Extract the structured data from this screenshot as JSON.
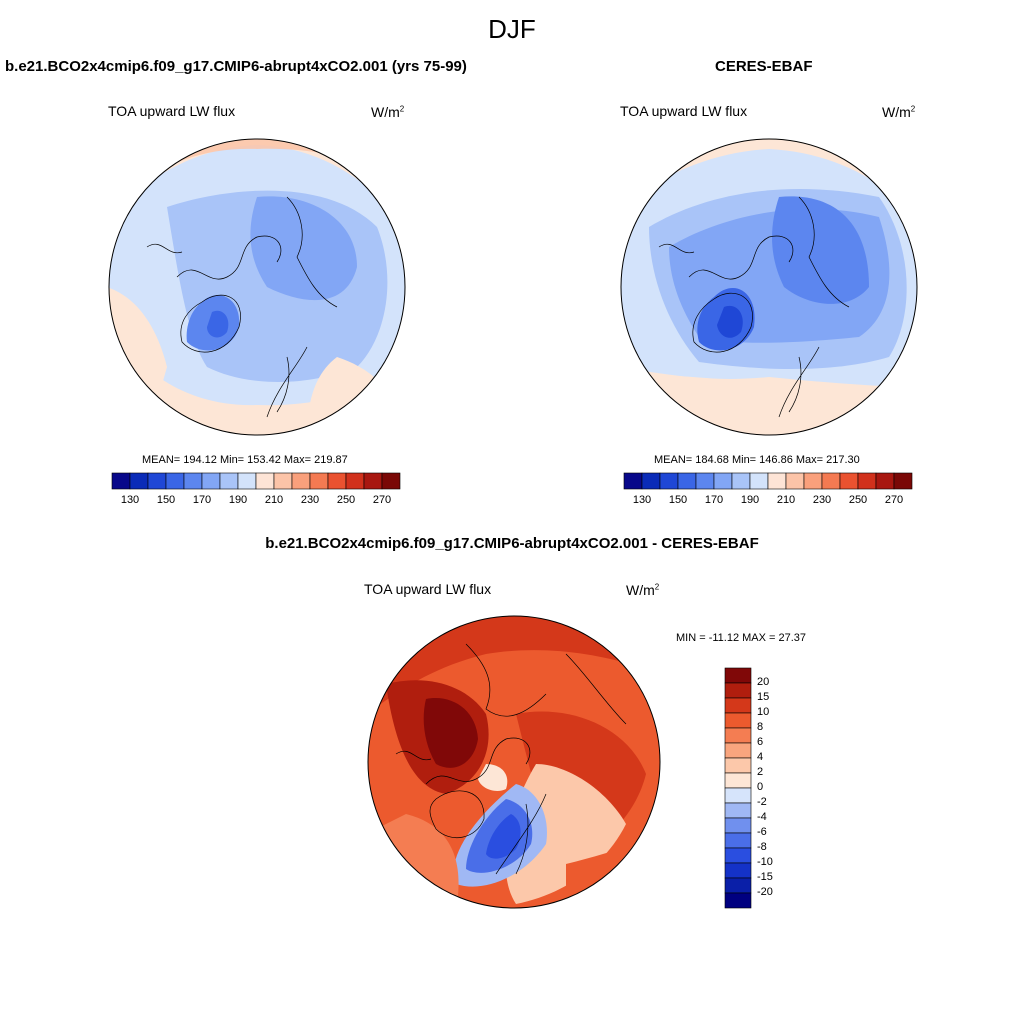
{
  "suptitle": "DJF",
  "panels": {
    "model": {
      "case_title": "b.e21.BCO2x4cmip6.f09_g17.CMIP6-abrupt4xCO2.001 (yrs 75-99)",
      "variable": "TOA upward LW flux",
      "units_base": "W/m",
      "units_exp": "2",
      "stats": "MEAN= 194.12  Min= 153.42  Max= 219.87"
    },
    "obs": {
      "case_title": "CERES-EBAF",
      "variable": "TOA upward LW flux",
      "units_base": "W/m",
      "units_exp": "2",
      "stats": "MEAN= 184.68  Min= 146.86  Max= 217.30"
    },
    "diff": {
      "case_title": "b.e21.BCO2x4cmip6.f09_g17.CMIP6-abrupt4xCO2.001 - CERES-EBAF",
      "variable": "TOA upward LW flux",
      "units_base": "W/m",
      "units_exp": "2",
      "stats": "MIN = -11.12 MAX =  27.37"
    }
  },
  "chart_data": [
    {
      "type": "heatmap",
      "title": "b.e21.BCO2x4cmip6.f09_g17.CMIP6-abrupt4xCO2.001 (yrs 75-99)",
      "variable": "TOA upward LW flux",
      "projection": "north polar stereographic",
      "stats": {
        "mean": 194.12,
        "min": 153.42,
        "max": 219.87
      },
      "colorbar": {
        "levels": [
          130,
          140,
          150,
          160,
          170,
          180,
          190,
          200,
          210,
          220,
          230,
          240,
          250,
          260,
          270
        ],
        "tick_labels": [
          "130",
          "150",
          "170",
          "190",
          "210",
          "230",
          "250",
          "270"
        ],
        "colors": [
          "#08088a",
          "#0a2bb8",
          "#1f47d6",
          "#3a66e6",
          "#5c86ef",
          "#82a6f5",
          "#a9c4f8",
          "#d3e3fb",
          "#fde4d6",
          "#fcc4a8",
          "#f9a07c",
          "#f47a52",
          "#ea5230",
          "#d1311c",
          "#a81710",
          "#7a0806"
        ]
      }
    },
    {
      "type": "heatmap",
      "title": "CERES-EBAF",
      "variable": "TOA upward LW flux",
      "projection": "north polar stereographic",
      "stats": {
        "mean": 184.68,
        "min": 146.86,
        "max": 217.3
      },
      "colorbar": {
        "levels": [
          130,
          140,
          150,
          160,
          170,
          180,
          190,
          200,
          210,
          220,
          230,
          240,
          250,
          260,
          270
        ],
        "tick_labels": [
          "130",
          "150",
          "170",
          "190",
          "210",
          "230",
          "250",
          "270"
        ],
        "colors": [
          "#08088a",
          "#0a2bb8",
          "#1f47d6",
          "#3a66e6",
          "#5c86ef",
          "#82a6f5",
          "#a9c4f8",
          "#d3e3fb",
          "#fde4d6",
          "#fcc4a8",
          "#f9a07c",
          "#f47a52",
          "#ea5230",
          "#d1311c",
          "#a81710",
          "#7a0806"
        ]
      }
    },
    {
      "type": "heatmap",
      "title": "b.e21.BCO2x4cmip6.f09_g17.CMIP6-abrupt4xCO2.001 - CERES-EBAF",
      "variable": "TOA upward LW flux",
      "projection": "north polar stereographic",
      "stats": {
        "min": -11.12,
        "max": 27.37
      },
      "colorbar": {
        "levels": [
          -20,
          -15,
          -10,
          -8,
          -6,
          -4,
          -2,
          0,
          2,
          4,
          6,
          8,
          10,
          15,
          20
        ],
        "tick_labels": [
          "20",
          "15",
          "10",
          "8",
          "6",
          "4",
          "2",
          "0",
          "-2",
          "-4",
          "-6",
          "-8",
          "-10",
          "-15",
          "-20"
        ],
        "colors": [
          "#000080",
          "#0a1fa8",
          "#1432c8",
          "#2a4ee0",
          "#4a6ee8",
          "#7090ee",
          "#a0b8f4",
          "#d6e4fb",
          "#fde6d6",
          "#fcc8aa",
          "#f9a57e",
          "#f47d52",
          "#ec5a2e",
          "#d4381a",
          "#b01e0e",
          "#800808"
        ]
      }
    }
  ]
}
